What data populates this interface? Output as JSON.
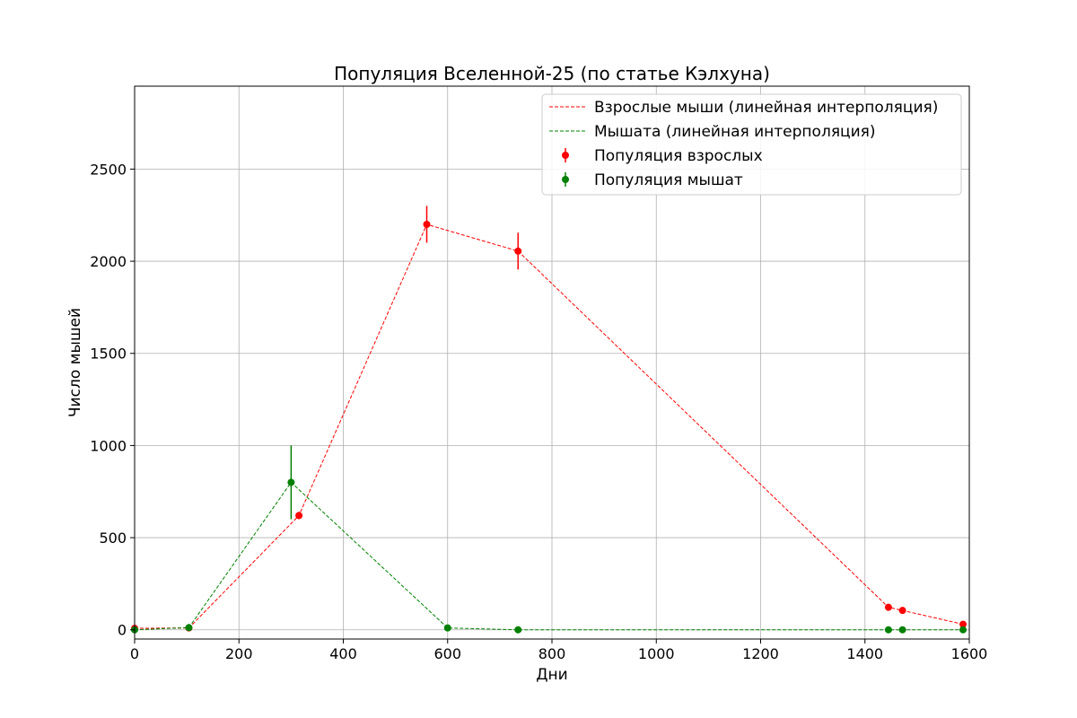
{
  "chart_data": {
    "type": "line",
    "title": "Популяция Вселенной-25 (по статье Кэлхуна)",
    "xlabel": "Дни",
    "ylabel": "Число мышей",
    "xlim": [
      0,
      1600
    ],
    "ylim": [
      -50,
      2950
    ],
    "xticks": [
      0,
      200,
      400,
      600,
      800,
      1000,
      1200,
      1400,
      1600
    ],
    "yticks": [
      0,
      500,
      1000,
      1500,
      2000,
      2500
    ],
    "grid": true,
    "legend_position": "top-right",
    "legend": [
      "Взрослые мыши (линейная интерполяция)",
      "Мышата (линейная интерполяция)",
      "Популяция взрослых",
      "Популяция мышат"
    ],
    "series": [
      {
        "name": "Популяция взрослых",
        "color": "#ff0000",
        "x": [
          0,
          104,
          315,
          560,
          735,
          1445,
          1472,
          1588
        ],
        "y": [
          8,
          10,
          620,
          2200,
          2055,
          122,
          105,
          30
        ],
        "err": [
          0,
          0,
          20,
          100,
          100,
          0,
          0,
          0
        ]
      },
      {
        "name": "Популяция мышат",
        "color": "#008000",
        "x": [
          0,
          104,
          300,
          600,
          735,
          1445,
          1472,
          1588
        ],
        "y": [
          0,
          12,
          800,
          10,
          0,
          0,
          0,
          0
        ],
        "err": [
          0,
          0,
          200,
          0,
          0,
          0,
          0,
          0
        ]
      }
    ]
  }
}
